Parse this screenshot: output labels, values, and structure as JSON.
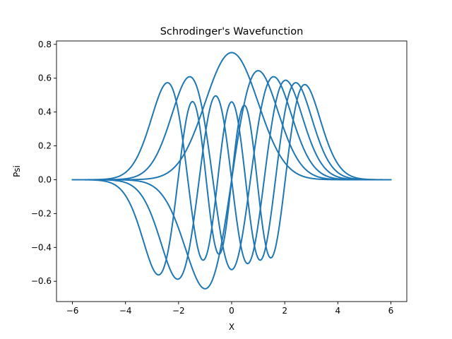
{
  "chart_data": {
    "type": "line",
    "title": "Schrodinger's Wavefunction",
    "xlabel": "X",
    "ylabel": "Psi",
    "xlim": [
      -6.6,
      6.6
    ],
    "ylim": [
      -0.72,
      0.82
    ],
    "xticks": [
      -6,
      -4,
      -2,
      0,
      2,
      4,
      6
    ],
    "xtick_labels": [
      "−6",
      "−4",
      "−2",
      "0",
      "2",
      "4",
      "6"
    ],
    "yticks": [
      -0.6,
      -0.4,
      -0.2,
      0.0,
      0.2,
      0.4,
      0.6,
      0.8
    ],
    "ytick_labels": [
      "−0.6",
      "−0.4",
      "−0.2",
      "0.0",
      "0.2",
      "0.4",
      "0.6",
      "0.8"
    ],
    "grid": false,
    "line_color": "#1f77b4",
    "x_range": [
      -6,
      6
    ],
    "series": [
      {
        "n": 0,
        "points": [
          [
            -6,
            0.0
          ],
          [
            -4,
            0.0003
          ],
          [
            -3,
            0.0083
          ],
          [
            -2,
            0.1014
          ],
          [
            -1.5,
            0.2445
          ],
          [
            -1,
            0.4556
          ],
          [
            -0.5,
            0.6622
          ],
          [
            0,
            0.7511
          ],
          [
            0.5,
            0.6622
          ],
          [
            1,
            0.4556
          ],
          [
            1.5,
            0.2445
          ],
          [
            2,
            0.1014
          ],
          [
            3,
            0.0083
          ],
          [
            4,
            0.0003
          ],
          [
            6,
            0.0
          ]
        ]
      },
      {
        "n": 1,
        "points": [
          [
            -6,
            0.0
          ],
          [
            -4,
            -0.0021
          ],
          [
            -3,
            -0.0476
          ],
          [
            -2,
            -0.2868
          ],
          [
            -1.5,
            -0.5186
          ],
          [
            -1,
            -0.6443
          ],
          [
            -0.5,
            -0.4683
          ],
          [
            0,
            0.0
          ],
          [
            0.5,
            0.4683
          ],
          [
            1,
            0.6443
          ],
          [
            1.5,
            0.5186
          ],
          [
            2,
            0.2868
          ],
          [
            3,
            0.0476
          ],
          [
            4,
            0.0021
          ],
          [
            6,
            0.0
          ]
        ]
      },
      {
        "n": 2,
        "points": [
          [
            -6,
            0.0
          ],
          [
            -4,
            0.0055
          ],
          [
            -3,
            0.1001
          ],
          [
            -2,
            0.3762
          ],
          [
            -1.5,
            0.4579
          ],
          [
            -1,
            0.1611
          ],
          [
            -0.5,
            -0.2341
          ],
          [
            0,
            -0.5311
          ],
          [
            0.5,
            -0.2341
          ],
          [
            1,
            0.1611
          ],
          [
            1.5,
            0.4579
          ],
          [
            2,
            0.3762
          ],
          [
            3,
            0.1001
          ],
          [
            4,
            0.0055
          ],
          [
            6,
            0.0
          ]
        ]
      },
      {
        "n": 3,
        "points": [
          [
            -6,
            0.0
          ],
          [
            -4,
            -0.0173
          ],
          [
            -3,
            -0.2169
          ],
          [
            -2,
            -0.5855
          ],
          [
            -1.5,
            -0.3235
          ],
          [
            -1,
            0.2628
          ],
          [
            -0.5,
            0.5214
          ],
          [
            0,
            0.0
          ],
          [
            0.5,
            -0.5214
          ],
          [
            1,
            -0.2628
          ],
          [
            1.5,
            0.3235
          ],
          [
            2,
            0.5855
          ],
          [
            3,
            0.2169
          ],
          [
            4,
            0.0173
          ],
          [
            6,
            0.0
          ]
        ]
      },
      {
        "n": 4,
        "points": [
          [
            -6,
            0.0
          ],
          [
            -4,
            0.0372
          ],
          [
            -3,
            0.3488
          ],
          [
            -2,
            0.4927
          ],
          [
            -1.5,
            -0.1042
          ],
          [
            -1,
            -0.3876
          ],
          [
            -0.5,
            0.1236
          ],
          [
            0,
            0.46
          ],
          [
            0.5,
            0.1236
          ],
          [
            1,
            -0.3876
          ],
          [
            1.5,
            -0.1042
          ],
          [
            2,
            0.4927
          ],
          [
            3,
            0.3488
          ],
          [
            4,
            0.0372
          ],
          [
            6,
            0.0
          ]
        ]
      },
      {
        "n": 5,
        "points": [
          [
            -6,
            0.0
          ],
          [
            -4,
            -0.0716
          ],
          [
            -3,
            -0.4927
          ],
          [
            -2,
            -0.1783
          ],
          [
            -1.5,
            0.4474
          ],
          [
            -1,
            0.0834
          ],
          [
            -0.5,
            -0.4424
          ],
          [
            0,
            0.0
          ],
          [
            0.5,
            0.4424
          ],
          [
            1,
            -0.0834
          ],
          [
            1.5,
            -0.4474
          ],
          [
            2,
            0.1783
          ],
          [
            3,
            0.4927
          ],
          [
            4,
            0.0716
          ],
          [
            6,
            0.0
          ]
        ]
      }
    ]
  }
}
